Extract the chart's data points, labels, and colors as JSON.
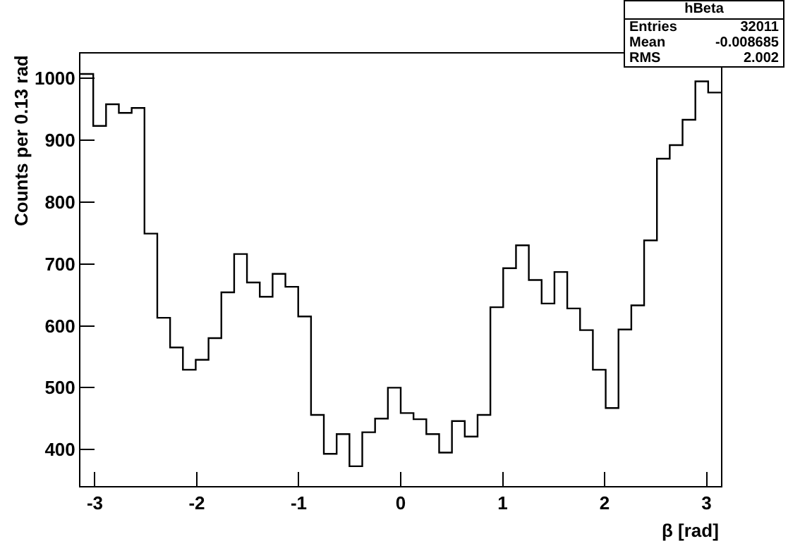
{
  "chart_data": {
    "type": "histogram",
    "xlabel": "β [rad]",
    "ylabel": "Counts per 0.13 rad",
    "bins": [
      -3.1416,
      -3.0159,
      -2.8903,
      -2.7646,
      -2.6389,
      -2.5133,
      -2.3876,
      -2.2619,
      -2.1363,
      -2.0106,
      -1.885,
      -1.7593,
      -1.6336,
      -1.508,
      -1.3823,
      -1.2566,
      -1.131,
      -1.0053,
      -0.8796,
      -0.754,
      -0.6283,
      -0.5027,
      -0.377,
      -0.2513,
      -0.1257,
      0,
      0.1257,
      0.2513,
      0.377,
      0.5027,
      0.6283,
      0.754,
      0.8796,
      1.0053,
      1.131,
      1.2566,
      1.3823,
      1.508,
      1.6336,
      1.7593,
      1.885,
      2.0106,
      2.1363,
      2.2619,
      2.3876,
      2.5133,
      2.6389,
      2.7646,
      2.8903,
      3.0159,
      3.1416
    ],
    "values": [
      1007,
      923,
      958,
      944,
      952,
      749,
      613,
      565,
      529,
      545,
      580,
      654,
      716,
      670,
      647,
      684,
      663,
      615,
      456,
      393,
      425,
      373,
      428,
      450,
      500,
      459,
      449,
      425,
      395,
      446,
      421,
      456,
      630,
      693,
      730,
      674,
      636,
      687,
      628,
      593,
      529,
      467,
      594,
      633,
      738,
      870,
      892,
      933,
      995,
      977
    ],
    "color": "#000000",
    "xlim": [
      -3.1416,
      3.1416
    ],
    "xticks": [
      -3,
      -2,
      -1,
      0,
      1,
      2,
      3
    ],
    "ylim": [
      341,
      1040
    ],
    "yticks": [
      400,
      500,
      600,
      700,
      800,
      900,
      1000
    ],
    "grid": false,
    "annotations": [
      "hBeta",
      "Entries",
      "32011",
      "Mean",
      "-0.008685",
      "RMS",
      "2.002"
    ]
  }
}
